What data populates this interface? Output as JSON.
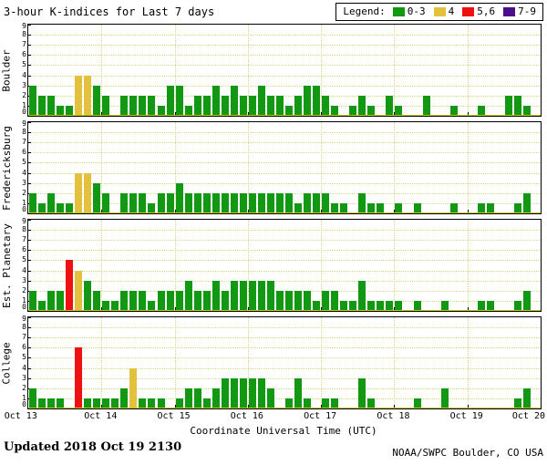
{
  "legend": {
    "label": "Legend:",
    "items": [
      {
        "label": "0-3",
        "color": "#129812"
      },
      {
        "label": "4",
        "color": "#e3c13d"
      },
      {
        "label": "5,6",
        "color": "#ef1111"
      },
      {
        "label": "7-9",
        "color": "#4b0e8c"
      }
    ]
  },
  "footer": {
    "updated": "Updated 2018 Oct 19 2130",
    "credit": "NOAA/SWPC Boulder, CO USA"
  },
  "chart_data": {
    "type": "bar",
    "title": "3-hour K-indices for Last 7 days",
    "xlabel": "Coordinate Universal Time (UTC)",
    "x_tick_labels": [
      "Oct 13",
      "Oct 14",
      "Oct 15",
      "Oct 16",
      "Oct 17",
      "Oct 18",
      "Oct 19",
      "Oct 20"
    ],
    "y_ticks": [
      0,
      1,
      2,
      3,
      4,
      5,
      6,
      7,
      8,
      9
    ],
    "ylim": [
      0,
      9
    ],
    "days": 7,
    "bars_per_day": 8,
    "grid": "dotted",
    "kp_colors": {
      "0-3": "#129812",
      "4": "#e3c13d",
      "5,6": "#ef1111",
      "7-9": "#4b0e8c"
    },
    "panels": [
      {
        "station": "Boulder",
        "values": [
          3,
          2,
          2,
          1,
          1,
          4,
          4,
          3,
          2,
          0,
          2,
          2,
          2,
          2,
          1,
          3,
          3,
          1,
          2,
          2,
          3,
          2,
          3,
          2,
          2,
          3,
          2,
          2,
          1,
          2,
          3,
          3,
          2,
          1,
          0,
          1,
          2,
          1,
          0,
          2,
          1,
          0,
          0,
          2,
          0,
          0,
          1,
          0,
          0,
          1,
          0,
          0,
          2,
          2,
          1,
          null
        ]
      },
      {
        "station": "Fredericksburg",
        "values": [
          2,
          1,
          2,
          1,
          1,
          4,
          4,
          3,
          2,
          0,
          2,
          2,
          2,
          1,
          2,
          2,
          3,
          2,
          2,
          2,
          2,
          2,
          2,
          2,
          2,
          2,
          2,
          2,
          2,
          1,
          2,
          2,
          2,
          1,
          1,
          0,
          2,
          1,
          1,
          0,
          1,
          0,
          1,
          0,
          0,
          0,
          1,
          0,
          0,
          1,
          1,
          0,
          0,
          1,
          2,
          null
        ]
      },
      {
        "station": "Est. Planetary",
        "values": [
          2,
          1,
          2,
          2,
          5,
          4,
          3,
          2,
          1,
          1,
          2,
          2,
          2,
          1,
          2,
          2,
          2,
          3,
          2,
          2,
          3,
          2,
          3,
          3,
          3,
          3,
          3,
          2,
          2,
          2,
          2,
          1,
          2,
          2,
          1,
          1,
          3,
          1,
          1,
          1,
          1,
          0,
          1,
          0,
          0,
          1,
          0,
          0,
          0,
          1,
          1,
          0,
          0,
          1,
          2,
          null
        ]
      },
      {
        "station": "College",
        "values": [
          2,
          1,
          1,
          1,
          0,
          6,
          1,
          1,
          1,
          1,
          2,
          4,
          1,
          1,
          1,
          0,
          1,
          2,
          2,
          1,
          2,
          3,
          3,
          3,
          3,
          3,
          2,
          0,
          1,
          3,
          1,
          0,
          1,
          1,
          0,
          0,
          3,
          1,
          0,
          0,
          0,
          0,
          1,
          0,
          0,
          2,
          0,
          0,
          0,
          0,
          0,
          0,
          0,
          1,
          2,
          null
        ]
      }
    ]
  }
}
